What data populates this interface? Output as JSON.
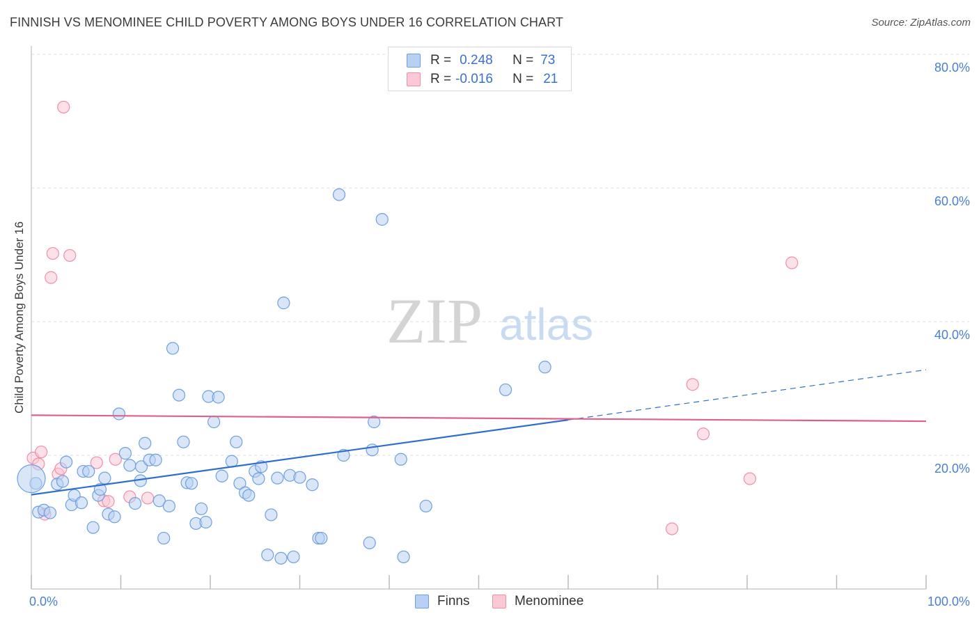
{
  "title": "FINNISH VS MENOMINEE CHILD POVERTY AMONG BOYS UNDER 16 CORRELATION CHART",
  "source": "Source: ZipAtlas.com",
  "watermark": {
    "zip": "ZIP",
    "atlas": "atlas"
  },
  "legend": {
    "r_label": "R =",
    "n_label": "N =",
    "series": [
      {
        "name": "Finns",
        "r": "0.248",
        "n": "73",
        "fill": "#b8d1f3",
        "stroke": "#6f9fe0"
      },
      {
        "name": "Menominee",
        "r": "-0.016",
        "n": "21",
        "fill": "#fbc8d6",
        "stroke": "#ee8fa9"
      }
    ]
  },
  "chart_data": {
    "type": "scatter",
    "xlabel": "",
    "ylabel": "Child Poverty Among Boys Under 16",
    "xlim": [
      0,
      100
    ],
    "ylim": [
      0,
      80
    ],
    "x_tick_labels": [
      "0.0%",
      "100.0%"
    ],
    "y_ticks": [
      20,
      40,
      60,
      80
    ],
    "y_tick_labels": [
      "20.0%",
      "40.0%",
      "60.0%",
      "80.0%"
    ],
    "grid": "horizontal dashed",
    "colors": {
      "finns": "#4a86d8",
      "menominee": "#e8739a",
      "tick": "#4a7fd0"
    },
    "series": [
      {
        "name": "Finns",
        "points": [
          [
            0.5,
            15.8
          ],
          [
            0.8,
            11.5
          ],
          [
            1.4,
            11.8
          ],
          [
            2.1,
            11.4
          ],
          [
            2.9,
            15.7
          ],
          [
            3.5,
            16.1
          ],
          [
            3.9,
            19.0
          ],
          [
            4.5,
            12.6
          ],
          [
            4.8,
            14.0
          ],
          [
            5.6,
            12.9
          ],
          [
            5.8,
            17.6
          ],
          [
            6.4,
            17.6
          ],
          [
            6.9,
            9.2
          ],
          [
            7.5,
            14.0
          ],
          [
            7.7,
            14.9
          ],
          [
            8.2,
            16.6
          ],
          [
            8.6,
            11.2
          ],
          [
            9.3,
            10.8
          ],
          [
            9.8,
            26.2
          ],
          [
            10.5,
            20.3
          ],
          [
            11.0,
            18.5
          ],
          [
            11.6,
            12.8
          ],
          [
            12.2,
            16.2
          ],
          [
            12.3,
            18.3
          ],
          [
            12.7,
            21.8
          ],
          [
            13.2,
            19.3
          ],
          [
            13.9,
            19.3
          ],
          [
            14.3,
            13.2
          ],
          [
            14.8,
            7.6
          ],
          [
            15.4,
            12.4
          ],
          [
            15.8,
            36.0
          ],
          [
            16.5,
            29.0
          ],
          [
            17.0,
            22.0
          ],
          [
            17.4,
            15.9
          ],
          [
            17.9,
            15.8
          ],
          [
            18.4,
            9.8
          ],
          [
            19.0,
            12.0
          ],
          [
            19.5,
            10.0
          ],
          [
            19.8,
            28.8
          ],
          [
            20.4,
            25.0
          ],
          [
            20.9,
            28.7
          ],
          [
            21.3,
            16.9
          ],
          [
            22.4,
            19.1
          ],
          [
            22.9,
            22.0
          ],
          [
            23.3,
            15.8
          ],
          [
            23.9,
            14.4
          ],
          [
            24.3,
            14.0
          ],
          [
            25.0,
            17.6
          ],
          [
            25.4,
            16.5
          ],
          [
            25.7,
            18.3
          ],
          [
            26.4,
            5.1
          ],
          [
            26.8,
            11.1
          ],
          [
            27.5,
            16.6
          ],
          [
            27.9,
            4.6
          ],
          [
            28.2,
            42.8
          ],
          [
            28.9,
            17.0
          ],
          [
            29.3,
            4.8
          ],
          [
            30.0,
            16.7
          ],
          [
            31.4,
            15.6
          ],
          [
            32.1,
            7.6
          ],
          [
            32.4,
            7.6
          ],
          [
            34.4,
            59.0
          ],
          [
            34.9,
            20.0
          ],
          [
            37.8,
            6.9
          ],
          [
            38.1,
            20.8
          ],
          [
            38.3,
            25.0
          ],
          [
            39.2,
            55.3
          ],
          [
            41.3,
            19.4
          ],
          [
            41.6,
            4.8
          ],
          [
            44.1,
            12.4
          ],
          [
            53.0,
            29.8
          ],
          [
            57.4,
            33.2
          ],
          [
            0.0,
            16.5
          ]
        ]
      },
      {
        "name": "Menominee",
        "points": [
          [
            0.2,
            19.6
          ],
          [
            0.8,
            18.7
          ],
          [
            1.1,
            20.5
          ],
          [
            1.5,
            11.2
          ],
          [
            2.2,
            46.6
          ],
          [
            2.4,
            50.2
          ],
          [
            3.0,
            17.2
          ],
          [
            3.3,
            18.0
          ],
          [
            3.6,
            72.1
          ],
          [
            4.3,
            49.9
          ],
          [
            7.3,
            18.9
          ],
          [
            8.1,
            13.2
          ],
          [
            8.6,
            13.1
          ],
          [
            9.4,
            19.4
          ],
          [
            11.0,
            13.8
          ],
          [
            13.0,
            13.6
          ],
          [
            71.6,
            9.0
          ],
          [
            73.9,
            30.6
          ],
          [
            75.1,
            23.2
          ],
          [
            80.3,
            16.5
          ],
          [
            85.0,
            48.8
          ]
        ]
      }
    ],
    "trendlines": [
      {
        "series": "Finns",
        "solid": [
          [
            0,
            14.1
          ],
          [
            60,
            25.3
          ]
        ],
        "dashed": [
          [
            60,
            25.3
          ],
          [
            100,
            32.8
          ]
        ]
      },
      {
        "series": "Menominee",
        "solid": [
          [
            0,
            26.0
          ],
          [
            100,
            25.1
          ]
        ]
      }
    ]
  }
}
